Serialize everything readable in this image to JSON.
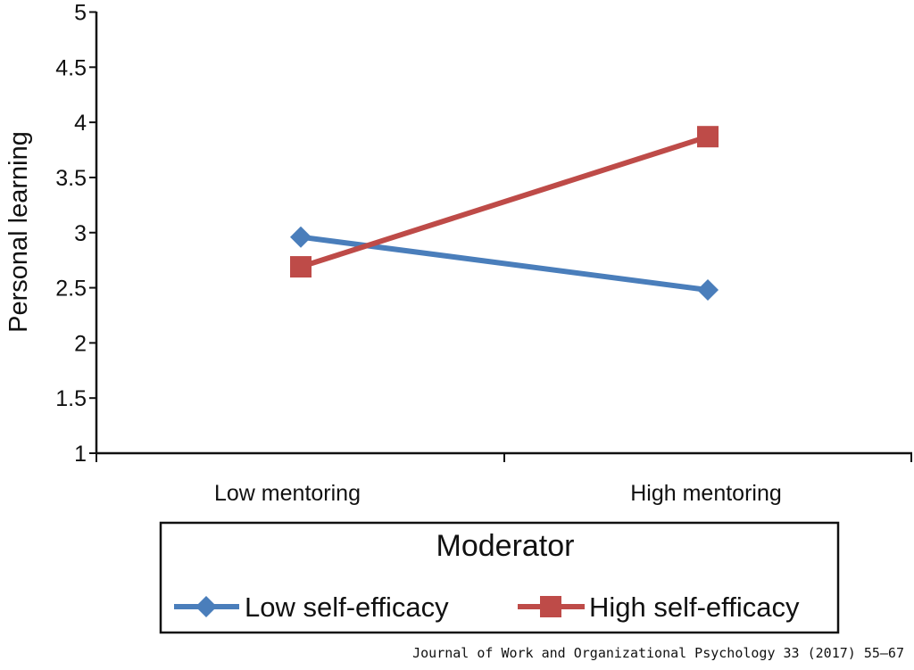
{
  "chart_data": {
    "type": "line",
    "title": "",
    "xlabel": "",
    "ylabel": "Personal learning",
    "categories": [
      "Low mentoring",
      "High mentoring"
    ],
    "ylim": [
      1,
      5
    ],
    "yticks": [
      "1",
      "1.5",
      "2",
      "2.5",
      "3",
      "3.5",
      "4",
      "4.5",
      "5"
    ],
    "grid": false,
    "legend": {
      "title": "Moderator",
      "placement": "bottom"
    },
    "series": [
      {
        "name": "Low self-efficacy",
        "values": [
          2.96,
          2.48
        ],
        "color": "#4a7ebb",
        "marker": "diamond"
      },
      {
        "name": "High self-efficacy",
        "values": [
          2.69,
          3.87
        ],
        "color": "#be4b48",
        "marker": "square"
      }
    ]
  },
  "source": "Journal of Work and Organizational Psychology 33 (2017) 55–67"
}
